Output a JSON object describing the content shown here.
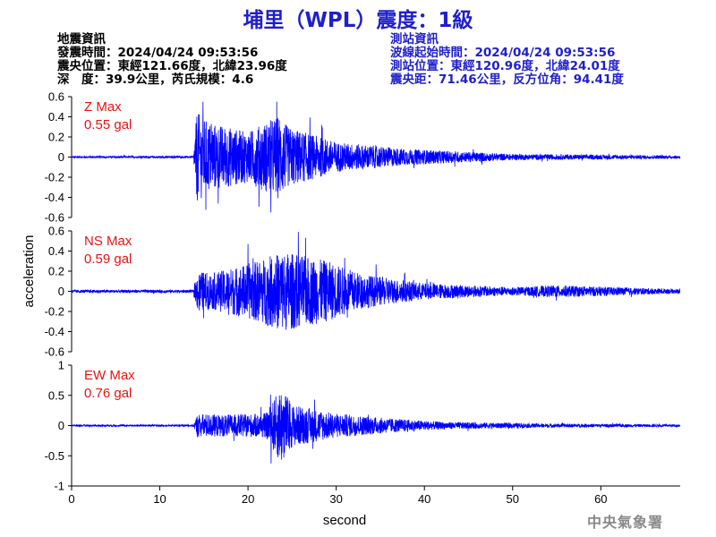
{
  "header": {
    "title": "埔里（WPL）震度：1級"
  },
  "quake_info": {
    "heading": "地震資訊",
    "origin_time": "發震時間：2024/04/24 09:53:56",
    "epicenter": "震央位置：東經121.66度，北緯23.96度",
    "depth_magnitude": "深　度：39.9公里，芮氏規模：4.6"
  },
  "station_info": {
    "heading": "測站資訊",
    "wave_start": "波線起始時間：2024/04/24 09:53:56",
    "location": "測站位置：東經120.96度，北緯24.01度",
    "distance": "震央距：71.46公里，反方位角：94.41度"
  },
  "footer": {
    "agency": "中央氣象署"
  },
  "colors": {
    "trace": "#0000ff",
    "max_label": "#ee1111",
    "title": "#1f1fcc"
  },
  "chart_data": {
    "type": "line",
    "xlabel": "second",
    "ylabel": "acceleration",
    "xlim": [
      0,
      69
    ],
    "xticks": [
      "0",
      "10",
      "20",
      "30",
      "40",
      "50",
      "60"
    ],
    "grid": false,
    "panels": [
      {
        "name": "Z",
        "max_title": "Z Max",
        "max_value": "0.55 gal",
        "peak": 0.55,
        "ylim": [
          -0.6,
          0.6
        ],
        "yticks": [
          "0.6",
          "0.4",
          "0.2",
          "0",
          "-0.2",
          "-0.4",
          "-0.6"
        ],
        "onset_s": 14,
        "envelope": [
          [
            0,
            0.01
          ],
          [
            13.8,
            0.01
          ],
          [
            14.2,
            0.45
          ],
          [
            15.5,
            0.35
          ],
          [
            20,
            0.25
          ],
          [
            23.5,
            0.42
          ],
          [
            24.5,
            0.3
          ],
          [
            30,
            0.15
          ],
          [
            38,
            0.08
          ],
          [
            50,
            0.03
          ],
          [
            69,
            0.015
          ]
        ]
      },
      {
        "name": "NS",
        "max_title": "NS Max",
        "max_value": "0.59 gal",
        "peak": 0.59,
        "ylim": [
          -0.6,
          0.6
        ],
        "yticks": [
          "0.6",
          "0.4",
          "0.2",
          "0",
          "-0.2",
          "-0.4",
          "-0.6"
        ],
        "onset_s": 14,
        "envelope": [
          [
            0,
            0.015
          ],
          [
            13.8,
            0.015
          ],
          [
            14.3,
            0.2
          ],
          [
            16,
            0.18
          ],
          [
            21,
            0.3
          ],
          [
            24,
            0.4
          ],
          [
            29,
            0.3
          ],
          [
            33,
            0.17
          ],
          [
            40,
            0.08
          ],
          [
            50,
            0.04
          ],
          [
            55,
            0.06
          ],
          [
            69,
            0.02
          ]
        ]
      },
      {
        "name": "EW",
        "max_title": "EW Max",
        "max_value": "0.76 gal",
        "peak": 0.76,
        "ylim": [
          -1,
          1
        ],
        "yticks": [
          "1",
          "0.5",
          "0",
          "-0.5",
          "-1"
        ],
        "onset_s": 14,
        "envelope": [
          [
            0,
            0.015
          ],
          [
            13.8,
            0.015
          ],
          [
            14.3,
            0.2
          ],
          [
            17,
            0.18
          ],
          [
            22,
            0.2
          ],
          [
            23.8,
            0.65
          ],
          [
            25,
            0.35
          ],
          [
            30,
            0.2
          ],
          [
            36,
            0.12
          ],
          [
            42,
            0.06
          ],
          [
            55,
            0.03
          ],
          [
            69,
            0.02
          ]
        ]
      }
    ]
  }
}
